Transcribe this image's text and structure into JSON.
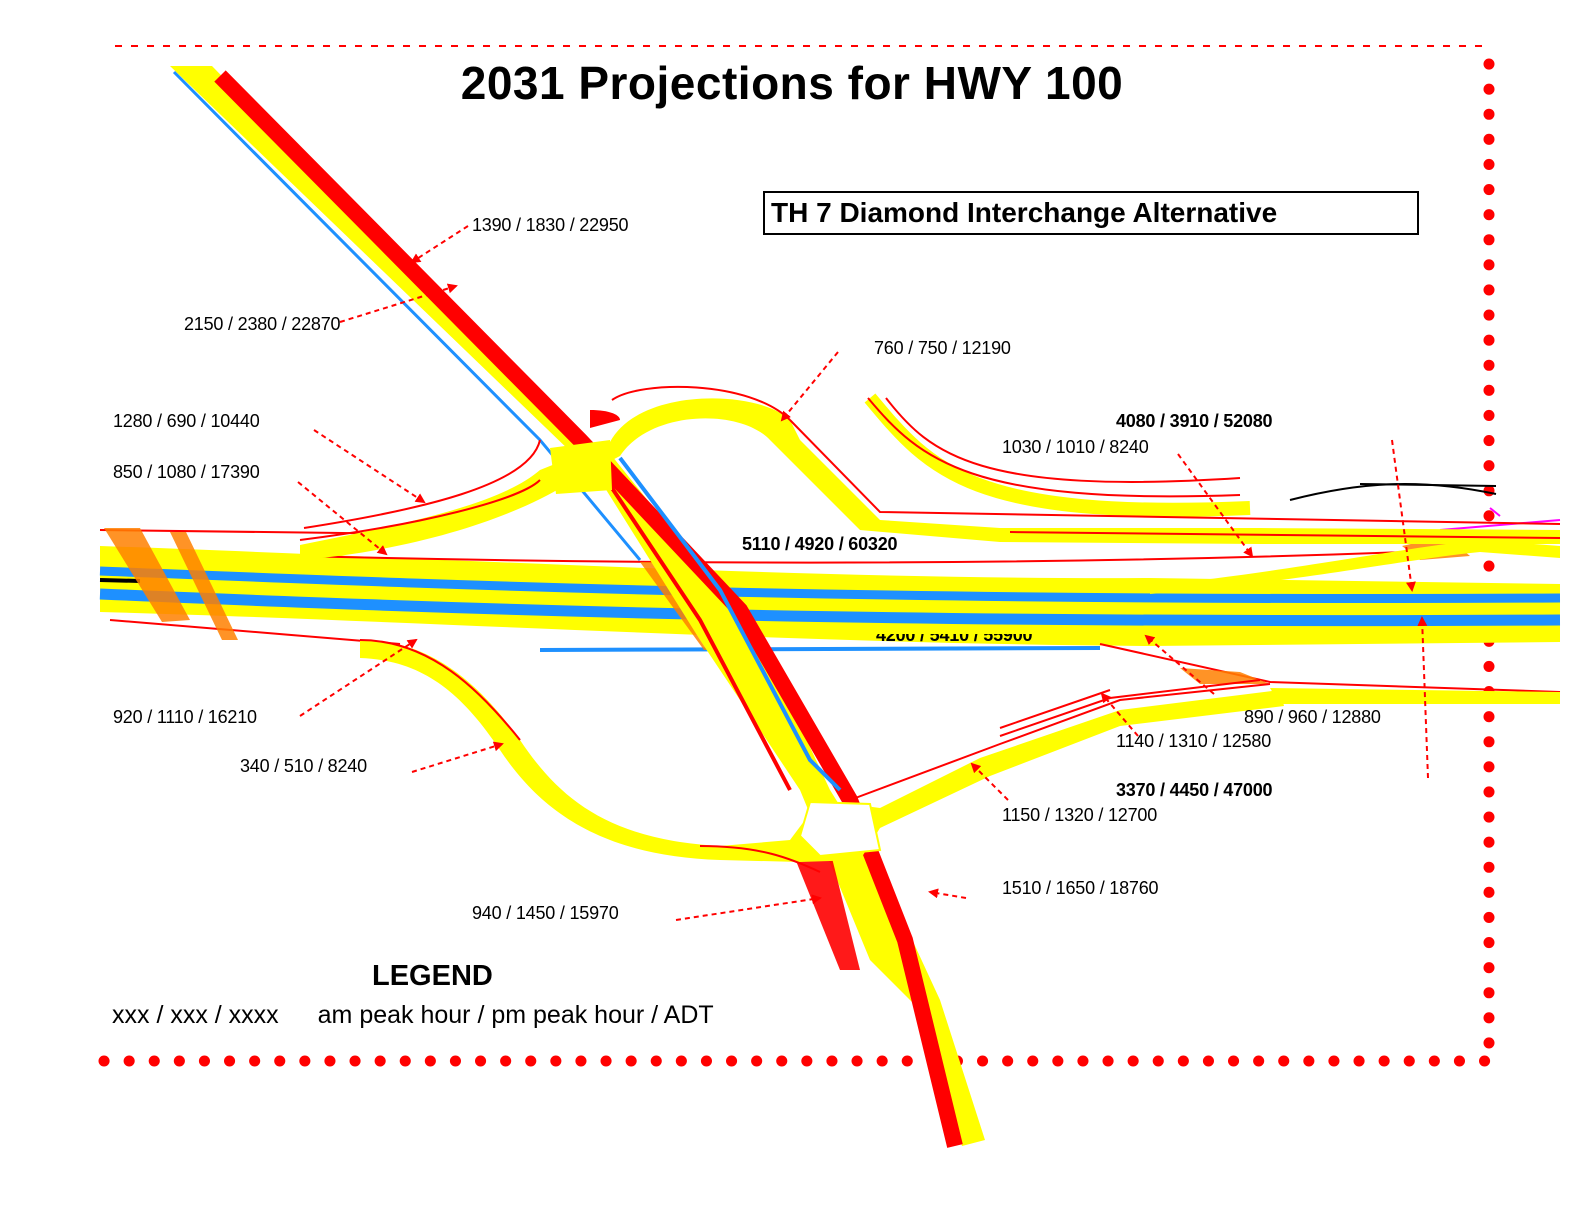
{
  "title": "2031 Projections for HWY 100",
  "alternative_label": "TH 7 Diamond Interchange Alternative",
  "labels": {
    "n_top": "1390 / 1830 / 22950",
    "n_mid": "2150 / 2380 / 22870",
    "ne_ramp": "760 / 750 / 12190",
    "nw_ramp": "1280 / 690 / 10440",
    "w_top": "850 / 1080 / 17390",
    "e_bold_top": "4080 / 3910 / 52080",
    "e_ramp_top": "1030 / 1010 / 8240",
    "mainline_top": "5110 / 4920 / 60320",
    "mainline_bottom": "4200 / 5410 / 55900",
    "w_bottom": "920 / 1110 / 16210",
    "sw_ramp": "340 / 510 / 8240",
    "e_ramp_bottom": "890 / 960 / 12880",
    "se_ramp_top": "1140 / 1310 / 12580",
    "e_bold_bottom": "3370 / 4450 / 47000",
    "se_ramp": "1150 / 1320 / 12700",
    "s_right": "1510 / 1650 / 18760",
    "s_left": "940 / 1450 / 15970"
  },
  "legend": {
    "title": "LEGEND",
    "format": "xxx / xxx / xxxx",
    "meaning": "am peak hour / pm peak hour / ADT"
  },
  "colors": {
    "road": "#ffff00",
    "lane_red": "#ff0000",
    "lane_blue": "#1e90ff",
    "crossing": "#ff8000",
    "border_dots": "#ff0000"
  }
}
